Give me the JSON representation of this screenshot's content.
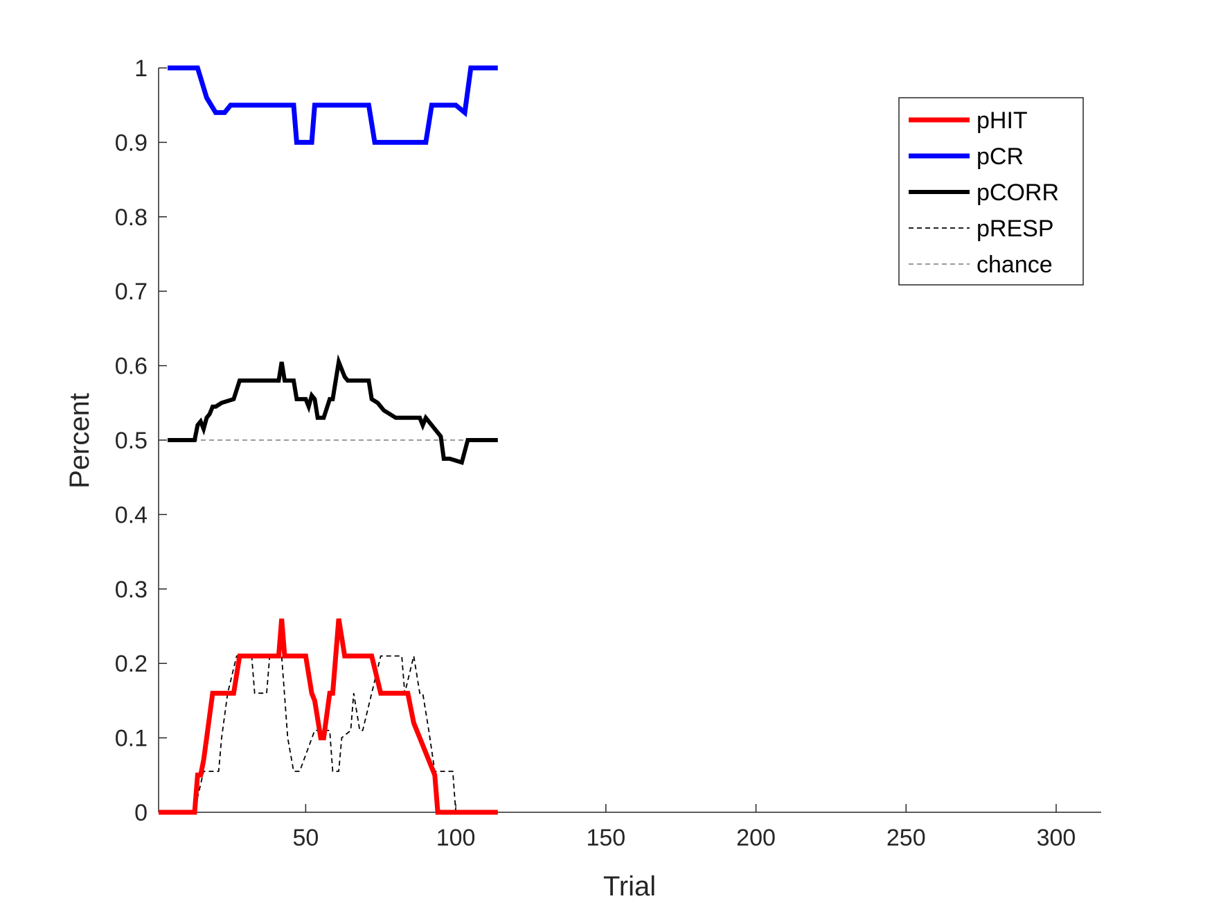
{
  "chart_data": {
    "type": "line",
    "title": "",
    "xlabel": "Trial",
    "ylabel": "Percent",
    "xlim": [
      1,
      315
    ],
    "ylim": [
      0,
      1
    ],
    "xticks": [
      50,
      100,
      150,
      200,
      250,
      300
    ],
    "yticks": [
      0,
      0.1,
      0.2,
      0.3,
      0.4,
      0.5,
      0.6,
      0.7,
      0.8,
      0.9,
      1
    ],
    "grid": false,
    "legend": "top-right",
    "series": [
      {
        "name": "pHIT",
        "color": "#ff0000",
        "style": "solid-thick",
        "x": [
          1,
          13,
          14,
          15,
          16,
          17,
          19,
          26,
          28,
          41,
          42,
          43,
          50,
          52,
          53,
          55,
          56,
          58,
          59,
          61,
          63,
          64,
          71,
          72,
          75,
          76,
          84,
          86,
          88,
          93,
          94,
          114
        ],
        "y": [
          0,
          0,
          0.05,
          0.05,
          0.07,
          0.1,
          0.16,
          0.16,
          0.21,
          0.21,
          0.26,
          0.21,
          0.21,
          0.16,
          0.15,
          0.1,
          0.1,
          0.16,
          0.16,
          0.26,
          0.21,
          0.21,
          0.21,
          0.21,
          0.16,
          0.16,
          0.16,
          0.12,
          0.1,
          0.05,
          0,
          0
        ]
      },
      {
        "name": "pCR",
        "color": "#0000ff",
        "style": "solid-thick",
        "x": [
          4,
          14,
          17,
          20,
          23,
          25,
          46,
          47,
          52,
          53,
          71,
          73,
          90,
          92,
          100,
          103,
          105,
          114
        ],
        "y": [
          1,
          1,
          0.96,
          0.94,
          0.94,
          0.95,
          0.95,
          0.9,
          0.9,
          0.95,
          0.95,
          0.9,
          0.9,
          0.95,
          0.95,
          0.94,
          1,
          1
        ]
      },
      {
        "name": "pCORR",
        "color": "#000000",
        "style": "solid-medium",
        "x": [
          4,
          13,
          14,
          15,
          16,
          17,
          18,
          19,
          20,
          22,
          26,
          28,
          41,
          42,
          43,
          46,
          47,
          50,
          51,
          52,
          53,
          54,
          56,
          58,
          59,
          61,
          63,
          64,
          71,
          72,
          74,
          76,
          80,
          88,
          89,
          90,
          95,
          96,
          98,
          102,
          104,
          114
        ],
        "y": [
          0.5,
          0.5,
          0.52,
          0.525,
          0.515,
          0.53,
          0.535,
          0.545,
          0.545,
          0.55,
          0.555,
          0.58,
          0.58,
          0.605,
          0.58,
          0.58,
          0.555,
          0.555,
          0.545,
          0.56,
          0.555,
          0.53,
          0.53,
          0.555,
          0.555,
          0.605,
          0.585,
          0.58,
          0.58,
          0.555,
          0.55,
          0.54,
          0.53,
          0.53,
          0.52,
          0.53,
          0.505,
          0.475,
          0.475,
          0.47,
          0.5,
          0.5
        ]
      },
      {
        "name": "pRESP",
        "color": "#000000",
        "style": "dashed-thin",
        "x": [
          1,
          13,
          14,
          16,
          21,
          22,
          24,
          27,
          32,
          33,
          37,
          38,
          40,
          42,
          44,
          46,
          48,
          53,
          54,
          58,
          59,
          61,
          62,
          65,
          66,
          68,
          69,
          75,
          76,
          79,
          82,
          83,
          86,
          88,
          89,
          91,
          93,
          99,
          100,
          114
        ],
        "y": [
          0,
          0,
          0.02,
          0.055,
          0.055,
          0.1,
          0.16,
          0.21,
          0.21,
          0.16,
          0.16,
          0.21,
          0.21,
          0.21,
          0.1,
          0.055,
          0.055,
          0.11,
          0.11,
          0.11,
          0.055,
          0.055,
          0.1,
          0.11,
          0.16,
          0.11,
          0.11,
          0.21,
          0.21,
          0.21,
          0.21,
          0.16,
          0.21,
          0.16,
          0.16,
          0.11,
          0.055,
          0.055,
          0,
          0
        ]
      },
      {
        "name": "chance",
        "color": "#8c8c8c",
        "style": "dashed-thin",
        "x": [
          4,
          114
        ],
        "y": [
          0.5,
          0.5
        ]
      }
    ]
  }
}
